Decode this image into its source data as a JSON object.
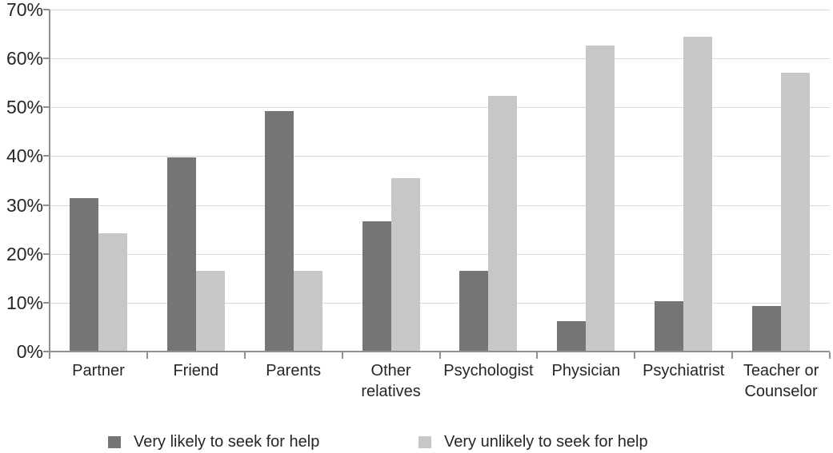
{
  "figure": {
    "background": "#ffffff",
    "text_color": "#262626",
    "axis_color": "#8f8f8f",
    "gridline_color": "#d9d9d9"
  },
  "chart_data": {
    "type": "bar",
    "title": "",
    "xlabel": "",
    "ylabel": "",
    "categories": [
      "Partner",
      "Friend",
      "Parents",
      "Other relatives",
      "Psychologist",
      "Physician",
      "Psychiatrist",
      "Teacher or Counselor"
    ],
    "series": [
      {
        "name": "Very likely to seek for help",
        "color": "#757575",
        "values": [
          31.3,
          39.6,
          49.1,
          26.5,
          16.4,
          6.1,
          10.1,
          9.1
        ]
      },
      {
        "name": "Very unlikely to seek for help",
        "color": "#c7c7c7",
        "values": [
          24.0,
          16.3,
          16.3,
          35.3,
          52.1,
          62.4,
          64.3,
          56.9
        ]
      }
    ],
    "ylim": [
      0,
      70
    ],
    "y_tick_step": 10,
    "y_tick_labels": [
      "0%",
      "10%",
      "20%",
      "30%",
      "40%",
      "50%",
      "60%",
      "70%"
    ],
    "grid": true,
    "legend_position": "bottom"
  }
}
